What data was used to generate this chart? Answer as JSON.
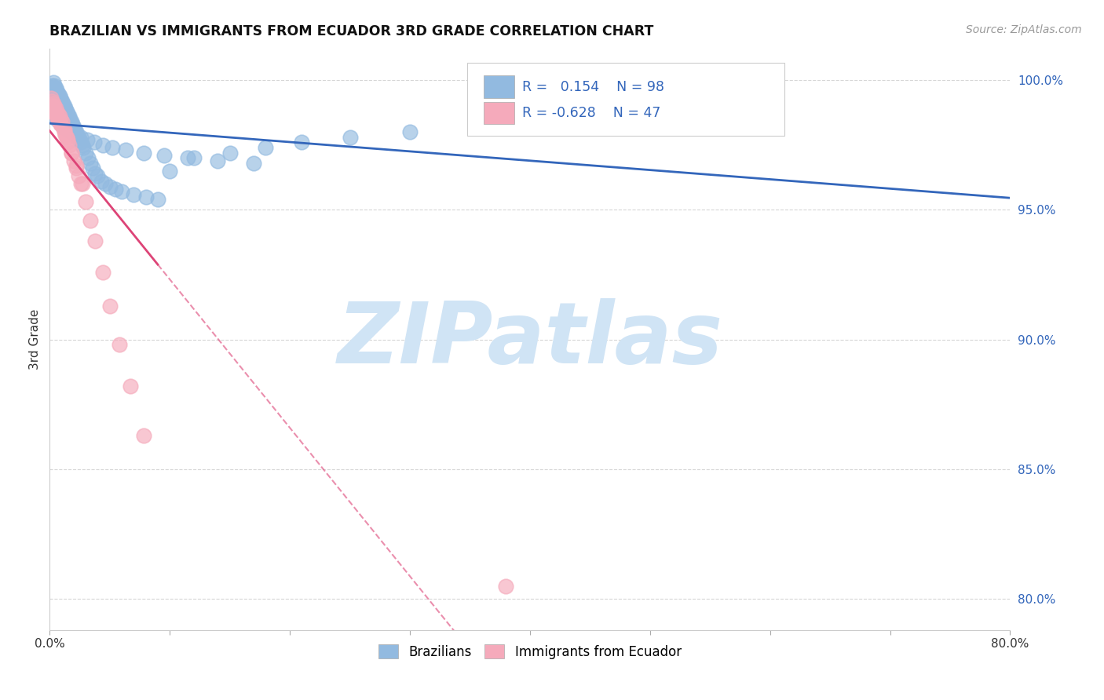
{
  "title": "BRAZILIAN VS IMMIGRANTS FROM ECUADOR 3RD GRADE CORRELATION CHART",
  "source": "Source: ZipAtlas.com",
  "ylabel": "3rd Grade",
  "ytick_values": [
    1.0,
    0.95,
    0.9,
    0.85,
    0.8
  ],
  "xmin": 0.0,
  "xmax": 0.8,
  "ymin": 0.788,
  "ymax": 1.012,
  "blue_R": 0.154,
  "blue_N": 98,
  "pink_R": -0.628,
  "pink_N": 47,
  "blue_color": "#92BAE0",
  "pink_color": "#F5AABB",
  "blue_line_color": "#3366BB",
  "pink_line_color": "#DD4477",
  "watermark_color": "#D0E4F5",
  "legend_blue_label": "Brazilians",
  "legend_pink_label": "Immigrants from Ecuador",
  "blue_scatter_x": [
    0.001,
    0.001,
    0.001,
    0.002,
    0.002,
    0.002,
    0.003,
    0.003,
    0.003,
    0.004,
    0.004,
    0.004,
    0.005,
    0.005,
    0.005,
    0.006,
    0.006,
    0.006,
    0.007,
    0.007,
    0.007,
    0.008,
    0.008,
    0.009,
    0.009,
    0.01,
    0.01,
    0.011,
    0.011,
    0.012,
    0.012,
    0.013,
    0.013,
    0.014,
    0.014,
    0.015,
    0.016,
    0.017,
    0.018,
    0.019,
    0.02,
    0.021,
    0.022,
    0.023,
    0.024,
    0.025,
    0.026,
    0.027,
    0.028,
    0.03,
    0.032,
    0.034,
    0.036,
    0.038,
    0.04,
    0.043,
    0.046,
    0.05,
    0.055,
    0.06,
    0.07,
    0.08,
    0.09,
    0.1,
    0.12,
    0.15,
    0.18,
    0.21,
    0.25,
    0.3,
    0.004,
    0.006,
    0.008,
    0.01,
    0.012,
    0.015,
    0.018,
    0.022,
    0.026,
    0.031,
    0.037,
    0.044,
    0.052,
    0.063,
    0.078,
    0.095,
    0.115,
    0.14,
    0.17,
    0.58,
    0.002,
    0.003,
    0.005,
    0.007,
    0.009,
    0.011,
    0.013,
    0.016
  ],
  "blue_scatter_y": [
    0.997,
    0.995,
    0.993,
    0.998,
    0.996,
    0.994,
    0.999,
    0.997,
    0.995,
    0.998,
    0.996,
    0.993,
    0.997,
    0.995,
    0.993,
    0.996,
    0.994,
    0.991,
    0.995,
    0.993,
    0.99,
    0.994,
    0.991,
    0.993,
    0.99,
    0.992,
    0.989,
    0.991,
    0.988,
    0.99,
    0.987,
    0.989,
    0.986,
    0.988,
    0.985,
    0.987,
    0.986,
    0.985,
    0.984,
    0.983,
    0.982,
    0.981,
    0.98,
    0.979,
    0.978,
    0.977,
    0.976,
    0.975,
    0.974,
    0.972,
    0.97,
    0.968,
    0.966,
    0.964,
    0.963,
    0.961,
    0.96,
    0.959,
    0.958,
    0.957,
    0.956,
    0.955,
    0.954,
    0.965,
    0.97,
    0.972,
    0.974,
    0.976,
    0.978,
    0.98,
    0.986,
    0.985,
    0.984,
    0.983,
    0.982,
    0.981,
    0.98,
    0.979,
    0.978,
    0.977,
    0.976,
    0.975,
    0.974,
    0.973,
    0.972,
    0.971,
    0.97,
    0.969,
    0.968,
    1.0,
    0.991,
    0.99,
    0.989,
    0.988,
    0.987,
    0.986,
    0.985,
    0.984
  ],
  "pink_scatter_x": [
    0.001,
    0.002,
    0.002,
    0.003,
    0.003,
    0.004,
    0.004,
    0.005,
    0.005,
    0.006,
    0.006,
    0.007,
    0.007,
    0.008,
    0.008,
    0.009,
    0.009,
    0.01,
    0.011,
    0.012,
    0.013,
    0.014,
    0.015,
    0.016,
    0.018,
    0.02,
    0.022,
    0.024,
    0.026,
    0.03,
    0.034,
    0.038,
    0.044,
    0.05,
    0.058,
    0.067,
    0.078,
    0.38,
    0.003,
    0.005,
    0.007,
    0.009,
    0.012,
    0.015,
    0.018,
    0.022,
    0.027
  ],
  "pink_scatter_y": [
    0.993,
    0.992,
    0.99,
    0.991,
    0.989,
    0.99,
    0.988,
    0.989,
    0.987,
    0.988,
    0.986,
    0.987,
    0.985,
    0.986,
    0.984,
    0.985,
    0.983,
    0.984,
    0.982,
    0.981,
    0.979,
    0.978,
    0.977,
    0.975,
    0.972,
    0.969,
    0.966,
    0.963,
    0.96,
    0.953,
    0.946,
    0.938,
    0.926,
    0.913,
    0.898,
    0.882,
    0.863,
    0.805,
    0.988,
    0.987,
    0.985,
    0.983,
    0.98,
    0.976,
    0.972,
    0.967,
    0.96
  ]
}
